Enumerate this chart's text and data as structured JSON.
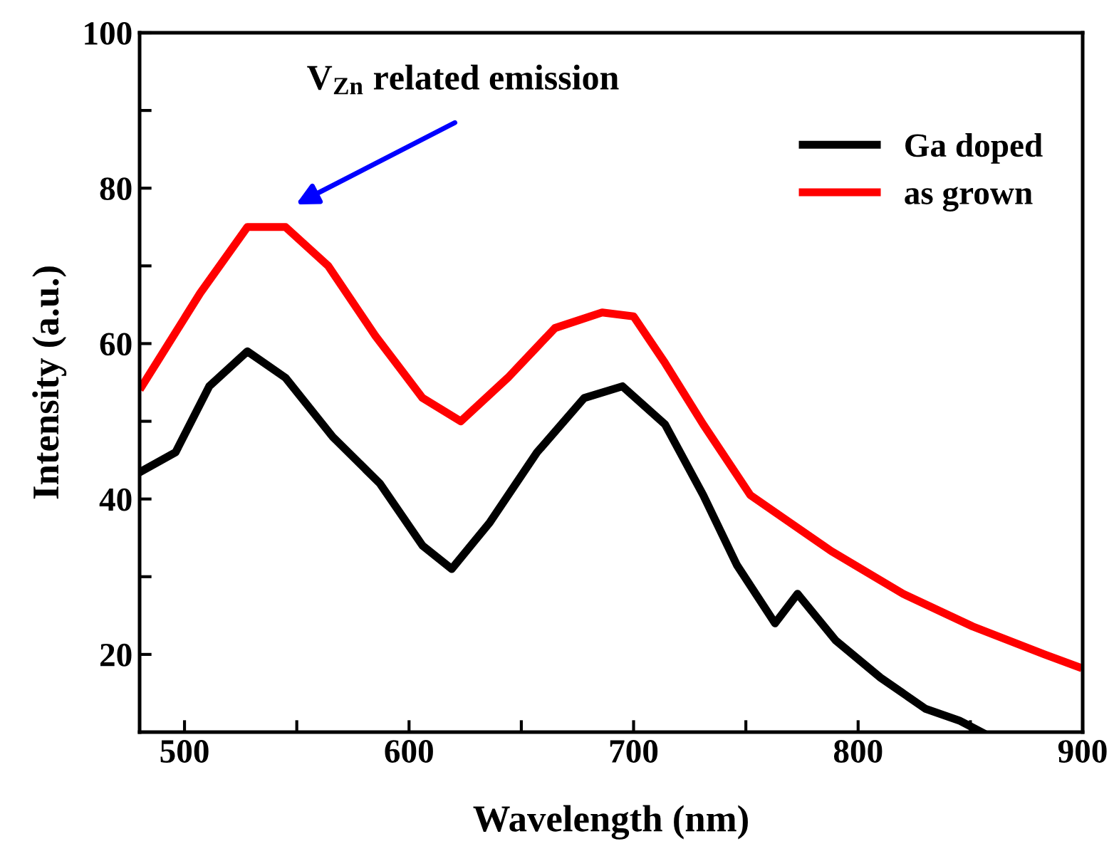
{
  "chart_data": {
    "type": "line",
    "xlabel": "Wavelength (nm)",
    "ylabel": "Intensity (a.u.)",
    "xlim": [
      480,
      900
    ],
    "ylim": [
      10,
      100
    ],
    "xticks": [
      500,
      {
        "value": 550,
        "label": null
      },
      600,
      {
        "value": 650,
        "label": null
      },
      700,
      {
        "value": 750,
        "label": null
      },
      800,
      {
        "value": 850,
        "label": null
      },
      900
    ],
    "yticks": [
      20,
      {
        "value": 30,
        "label": null
      },
      40,
      {
        "value": 50,
        "label": null
      },
      60,
      {
        "value": 70,
        "label": null
      },
      80,
      {
        "value": 90,
        "label": null
      },
      100
    ],
    "legend": "top right",
    "grid": false,
    "marker": "none",
    "line_style": "solid",
    "annotations": [
      "V$_{Zn}$ related emission"
    ],
    "series": [
      {
        "name": "Ga doped",
        "color": "#000000",
        "x": [
          481,
          496,
          511,
          528,
          545,
          566,
          587,
          606,
          619,
          636,
          657,
          678,
          695,
          714,
          731,
          746,
          763,
          773,
          790,
          810,
          830,
          845,
          855
        ],
        "values": [
          43.6,
          46,
          54.5,
          59,
          55.6,
          48,
          42,
          34,
          31,
          37,
          46,
          53,
          54.5,
          49.6,
          40.5,
          31.5,
          24,
          27.8,
          21.8,
          17,
          13,
          11.5,
          10
        ]
      },
      {
        "name": "as grown",
        "color": "#ff0000",
        "x": [
          481,
          507,
          528,
          545,
          564,
          585,
          606,
          623,
          644,
          665,
          686,
          700,
          714,
          731,
          752,
          767,
          788,
          820,
          851,
          883,
          898
        ],
        "values": [
          54.5,
          66.5,
          75,
          75,
          70,
          61,
          53,
          50,
          55.6,
          62,
          64,
          63.5,
          57.5,
          49.6,
          40.5,
          37.5,
          33.3,
          27.8,
          23.6,
          20,
          18.4
        ]
      }
    ]
  }
}
